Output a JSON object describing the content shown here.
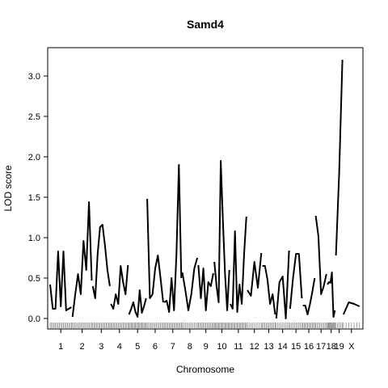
{
  "chart_data": {
    "type": "line",
    "title": "Samd4",
    "xlabel": "Chromosome",
    "ylabel": "LOD score",
    "ylim": [
      -0.13,
      3.35
    ],
    "y_ticks": [
      0.0,
      0.5,
      1.0,
      1.5,
      2.0,
      2.5,
      3.0
    ],
    "y_tick_labels": [
      "0.0",
      "0.5",
      "1.0",
      "1.5",
      "2.0",
      "2.5",
      "3.0"
    ],
    "grid": false,
    "legend": "none",
    "x_axis_units": "concatenated genome position (cM)",
    "xlim": [
      0,
      1455
    ],
    "chromosomes": [
      {
        "label": "1",
        "start": 0,
        "length": 100,
        "lod": [
          0.42,
          0.12,
          0.12,
          0.83,
          0.15,
          0.83,
          0.1,
          0.12,
          0.14
        ]
      },
      {
        "label": "2",
        "start": 105,
        "length": 90,
        "lod": [
          0.02,
          0.3,
          0.55,
          0.3,
          0.96,
          0.6,
          1.44,
          0.47
        ]
      },
      {
        "label": "3",
        "start": 200,
        "length": 80,
        "lod": [
          0.4,
          0.25,
          0.8,
          1.13,
          1.16,
          0.9,
          0.6,
          0.4
        ]
      },
      {
        "label": "4",
        "start": 285,
        "length": 80,
        "lod": [
          0.18,
          0.12,
          0.3,
          0.18,
          0.65,
          0.45,
          0.3,
          0.66
        ]
      },
      {
        "label": "5",
        "start": 370,
        "length": 80,
        "lod": [
          0.05,
          0.12,
          0.2,
          0.08,
          0.02,
          0.35,
          0.07,
          0.15,
          0.25
        ]
      },
      {
        "label": "6",
        "start": 455,
        "length": 75,
        "lod": [
          1.48,
          0.25,
          0.3,
          0.62,
          0.78,
          0.5,
          0.2
        ]
      },
      {
        "label": "7",
        "start": 535,
        "length": 80,
        "lod": [
          0.2,
          0.22,
          0.08,
          0.5,
          0.1,
          0.8,
          1.9,
          0.5
        ]
      },
      {
        "label": "8",
        "start": 620,
        "length": 70,
        "lod": [
          0.57,
          0.35,
          0.1,
          0.3,
          0.62,
          0.75
        ]
      },
      {
        "label": "9",
        "start": 695,
        "length": 70,
        "lod": [
          0.66,
          0.25,
          0.62,
          0.1,
          0.45,
          0.4,
          0.56
        ]
      },
      {
        "label": "10",
        "start": 770,
        "length": 70,
        "lod": [
          0.7,
          0.4,
          0.2,
          1.95,
          1.2,
          0.55,
          0.1,
          0.6
        ]
      },
      {
        "label": "11",
        "start": 845,
        "length": 75,
        "lod": [
          0.18,
          0.12,
          1.08,
          0.08,
          0.42,
          0.18,
          0.8,
          1.26
        ]
      },
      {
        "label": "12",
        "start": 925,
        "length": 65,
        "lod": [
          0.35,
          0.28,
          0.7,
          0.38,
          0.81
        ]
      },
      {
        "label": "13",
        "start": 995,
        "length": 60,
        "lod": [
          0.65,
          0.65,
          0.48,
          0.18,
          0.3,
          0.05
        ]
      },
      {
        "label": "14",
        "start": 1060,
        "length": 60,
        "lod": [
          0.0,
          0.45,
          0.52,
          0.0,
          0.84
        ]
      },
      {
        "label": "15",
        "start": 1125,
        "length": 55,
        "lod": [
          0.12,
          0.5,
          0.8,
          0.8,
          0.25
        ]
      },
      {
        "label": "16",
        "start": 1185,
        "length": 55,
        "lod": [
          0.16,
          0.16,
          0.05,
          0.18,
          0.33,
          0.5
        ]
      },
      {
        "label": "17",
        "start": 1245,
        "length": 50,
        "lod": [
          1.27,
          1.02,
          0.3,
          0.4,
          0.55
        ]
      },
      {
        "label": "18",
        "start": 1300,
        "length": 35,
        "lod": [
          0.42,
          0.45,
          0.44,
          0.57,
          0.02,
          0.1
        ]
      },
      {
        "label": "19",
        "start": 1340,
        "length": 30,
        "lod": [
          0.78,
          1.8,
          3.2
        ]
      },
      {
        "label": "X",
        "start": 1375,
        "length": 75,
        "lod": [
          0.05,
          0.2,
          0.18,
          0.15
        ]
      }
    ]
  }
}
